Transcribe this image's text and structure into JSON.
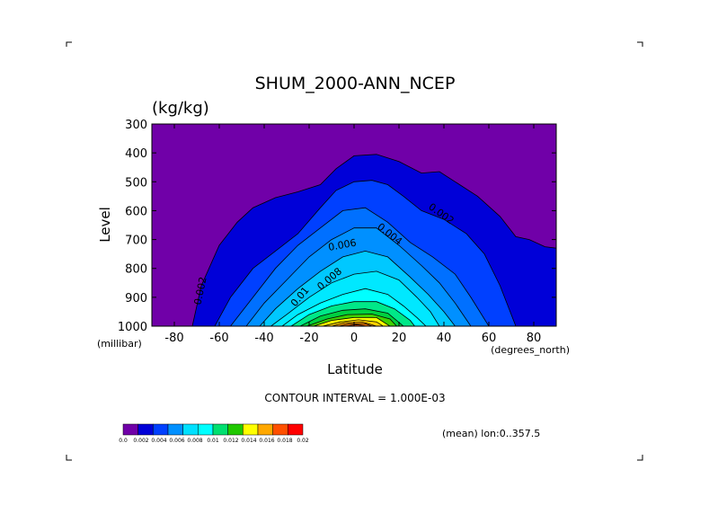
{
  "chart_data": {
    "type": "filled_contour",
    "title": "SHUM_2000-ANN_NCEP",
    "units": "(kg/kg)",
    "xlabel": "Latitude",
    "ylabel": "Level",
    "x_units": "(degrees_north)",
    "y_units": "(millibar)",
    "xlim": [
      -90,
      90
    ],
    "ylim": [
      1000,
      300
    ],
    "x_ticks": [
      -80,
      -60,
      -40,
      -20,
      0,
      20,
      40,
      60,
      80
    ],
    "y_ticks": [
      300,
      400,
      500,
      600,
      700,
      800,
      900,
      1000
    ],
    "contour_interval_text": "CONTOUR INTERVAL = 1.000E-03",
    "mean_note": "(mean) lon:0..357.5",
    "colorbar": {
      "labels": [
        "0.0",
        "0.002",
        "0.004",
        "0.006",
        "0.008",
        "0.01",
        "0.012",
        "0.014",
        "0.016",
        "0.018",
        "0.02"
      ],
      "colors": [
        "#7000a8",
        "#0000d8",
        "#0040ff",
        "#0090ff",
        "#00e0ff",
        "#00ffff",
        "#00e070",
        "#20c800",
        "#ffff00",
        "#ffa800",
        "#ff5000",
        "#ff0000"
      ]
    },
    "contour_line_labels": [
      "0.002",
      "0.002",
      "0.004",
      "0.006",
      "0.008",
      "0.01"
    ],
    "levels": [
      {
        "value": 0.001,
        "fill": "#7000a8",
        "line": true,
        "points": [
          [
            -90,
            1000
          ],
          [
            90,
            1000
          ],
          [
            90,
            300
          ],
          [
            -90,
            300
          ]
        ]
      },
      {
        "value": 0.002,
        "fill": "#0000d8",
        "line": true,
        "points": [
          [
            -72,
            1000
          ],
          [
            -68,
            860
          ],
          [
            -60,
            720
          ],
          [
            -52,
            640
          ],
          [
            -45,
            590
          ],
          [
            -35,
            555
          ],
          [
            -25,
            535
          ],
          [
            -15,
            510
          ],
          [
            -8,
            455
          ],
          [
            0,
            410
          ],
          [
            10,
            405
          ],
          [
            20,
            430
          ],
          [
            30,
            470
          ],
          [
            38,
            465
          ],
          [
            45,
            500
          ],
          [
            55,
            550
          ],
          [
            65,
            620
          ],
          [
            72,
            690
          ],
          [
            78,
            700
          ],
          [
            85,
            725
          ],
          [
            90,
            730
          ],
          [
            90,
            1000
          ]
        ]
      },
      {
        "value": 0.003,
        "fill": "#0040ff",
        "line": true,
        "points": [
          [
            -62,
            1000
          ],
          [
            -55,
            900
          ],
          [
            -45,
            800
          ],
          [
            -35,
            740
          ],
          [
            -25,
            680
          ],
          [
            -15,
            590
          ],
          [
            -8,
            530
          ],
          [
            0,
            500
          ],
          [
            8,
            495
          ],
          [
            15,
            510
          ],
          [
            22,
            550
          ],
          [
            30,
            600
          ],
          [
            40,
            630
          ],
          [
            50,
            680
          ],
          [
            58,
            750
          ],
          [
            65,
            860
          ],
          [
            72,
            1000
          ]
        ]
      },
      {
        "value": 0.004,
        "fill": "#0070ff",
        "line": true,
        "points": [
          [
            -55,
            1000
          ],
          [
            -45,
            900
          ],
          [
            -35,
            800
          ],
          [
            -25,
            720
          ],
          [
            -15,
            660
          ],
          [
            -5,
            600
          ],
          [
            5,
            590
          ],
          [
            15,
            640
          ],
          [
            25,
            710
          ],
          [
            35,
            760
          ],
          [
            45,
            820
          ],
          [
            52,
            900
          ],
          [
            60,
            1000
          ]
        ]
      },
      {
        "value": 0.005,
        "fill": "#0090ff",
        "line": true,
        "points": [
          [
            -48,
            1000
          ],
          [
            -40,
            920
          ],
          [
            -30,
            840
          ],
          [
            -20,
            760
          ],
          [
            -10,
            700
          ],
          [
            0,
            660
          ],
          [
            10,
            660
          ],
          [
            20,
            720
          ],
          [
            30,
            790
          ],
          [
            38,
            850
          ],
          [
            45,
            920
          ],
          [
            52,
            1000
          ]
        ]
      },
      {
        "value": 0.006,
        "fill": "#00c8ff",
        "line": true,
        "points": [
          [
            -42,
            1000
          ],
          [
            -35,
            940
          ],
          [
            -25,
            870
          ],
          [
            -15,
            810
          ],
          [
            -5,
            760
          ],
          [
            5,
            740
          ],
          [
            15,
            760
          ],
          [
            25,
            830
          ],
          [
            33,
            890
          ],
          [
            40,
            950
          ],
          [
            45,
            1000
          ]
        ]
      },
      {
        "value": 0.007,
        "fill": "#00e8ff",
        "line": true,
        "points": [
          [
            -37,
            1000
          ],
          [
            -30,
            960
          ],
          [
            -20,
            900
          ],
          [
            -10,
            850
          ],
          [
            0,
            820
          ],
          [
            10,
            810
          ],
          [
            20,
            840
          ],
          [
            28,
            900
          ],
          [
            34,
            950
          ],
          [
            38,
            1000
          ]
        ]
      },
      {
        "value": 0.008,
        "fill": "#00ffff",
        "line": true,
        "points": [
          [
            -32,
            1000
          ],
          [
            -25,
            960
          ],
          [
            -15,
            920
          ],
          [
            -5,
            890
          ],
          [
            5,
            870
          ],
          [
            15,
            890
          ],
          [
            22,
            930
          ],
          [
            28,
            970
          ],
          [
            32,
            1000
          ]
        ]
      },
      {
        "value": 0.009,
        "fill": "#00e888",
        "line": true,
        "points": [
          [
            -28,
            1000
          ],
          [
            -20,
            960
          ],
          [
            -10,
            930
          ],
          [
            0,
            915
          ],
          [
            10,
            915
          ],
          [
            18,
            940
          ],
          [
            25,
            980
          ],
          [
            27,
            1000
          ]
        ]
      },
      {
        "value": 0.01,
        "fill": "#00d040",
        "line": true,
        "points": [
          [
            -24,
            1000
          ],
          [
            -15,
            965
          ],
          [
            -5,
            945
          ],
          [
            5,
            940
          ],
          [
            15,
            955
          ],
          [
            22,
            1000
          ]
        ]
      },
      {
        "value": 0.011,
        "fill": "#40d000",
        "line": true,
        "points": [
          [
            -21,
            1000
          ],
          [
            -12,
            975
          ],
          [
            -3,
            960
          ],
          [
            8,
            958
          ],
          [
            16,
            975
          ],
          [
            19,
            1000
          ]
        ]
      },
      {
        "value": 0.012,
        "fill": "#ffff00",
        "line": true,
        "points": [
          [
            -18,
            1000
          ],
          [
            -10,
            980
          ],
          [
            0,
            970
          ],
          [
            10,
            970
          ],
          [
            16,
            1000
          ]
        ]
      },
      {
        "value": 0.013,
        "fill": "#ffd000",
        "line": true,
        "points": [
          [
            -14,
            1000
          ],
          [
            -6,
            985
          ],
          [
            2,
            978
          ],
          [
            10,
            985
          ],
          [
            13,
            1000
          ]
        ]
      },
      {
        "value": 0.014,
        "fill": "#ffa000",
        "line": true,
        "points": [
          [
            -10,
            1000
          ],
          [
            -4,
            988
          ],
          [
            4,
            986
          ],
          [
            10,
            1000
          ]
        ]
      },
      {
        "value": 0.015,
        "fill": "#ff7800",
        "line": true,
        "points": [
          [
            -7,
            1000
          ],
          [
            -2,
            992
          ],
          [
            5,
            992
          ],
          [
            8,
            1000
          ]
        ]
      },
      {
        "value": 0.016,
        "fill": "#ff5000",
        "line": true,
        "points": [
          [
            -4,
            1000
          ],
          [
            1,
            995
          ],
          [
            6,
            1000
          ]
        ]
      }
    ]
  }
}
